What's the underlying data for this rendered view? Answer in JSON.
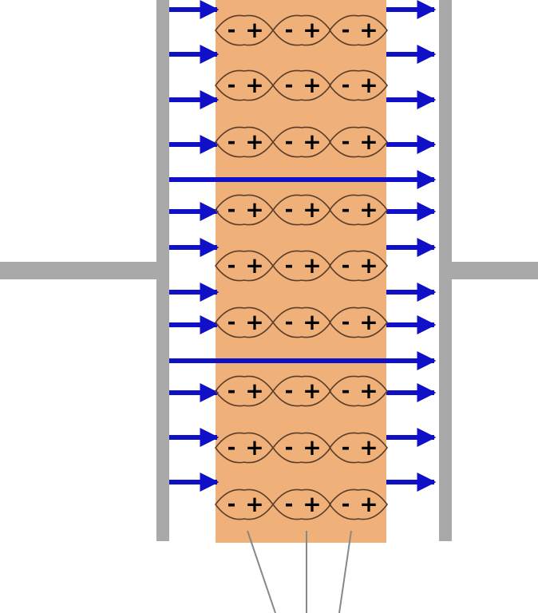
{
  "colors": {
    "plate": "#a9a9a9",
    "dielectric": "#f0b07a",
    "field_arrow": "#1010c8",
    "dipole_outline": "#5a3e2a",
    "dipole_sign": "#000000",
    "leader_line": "#888888"
  },
  "diagram": {
    "dipole_columns": 3,
    "dipole_rows": 9,
    "dipole_negative_sign": "-",
    "dipole_positive_sign": "+",
    "left_short_arrows": 11,
    "right_short_arrows": 11,
    "through_field_lines": 2,
    "leader_lines": 3
  }
}
